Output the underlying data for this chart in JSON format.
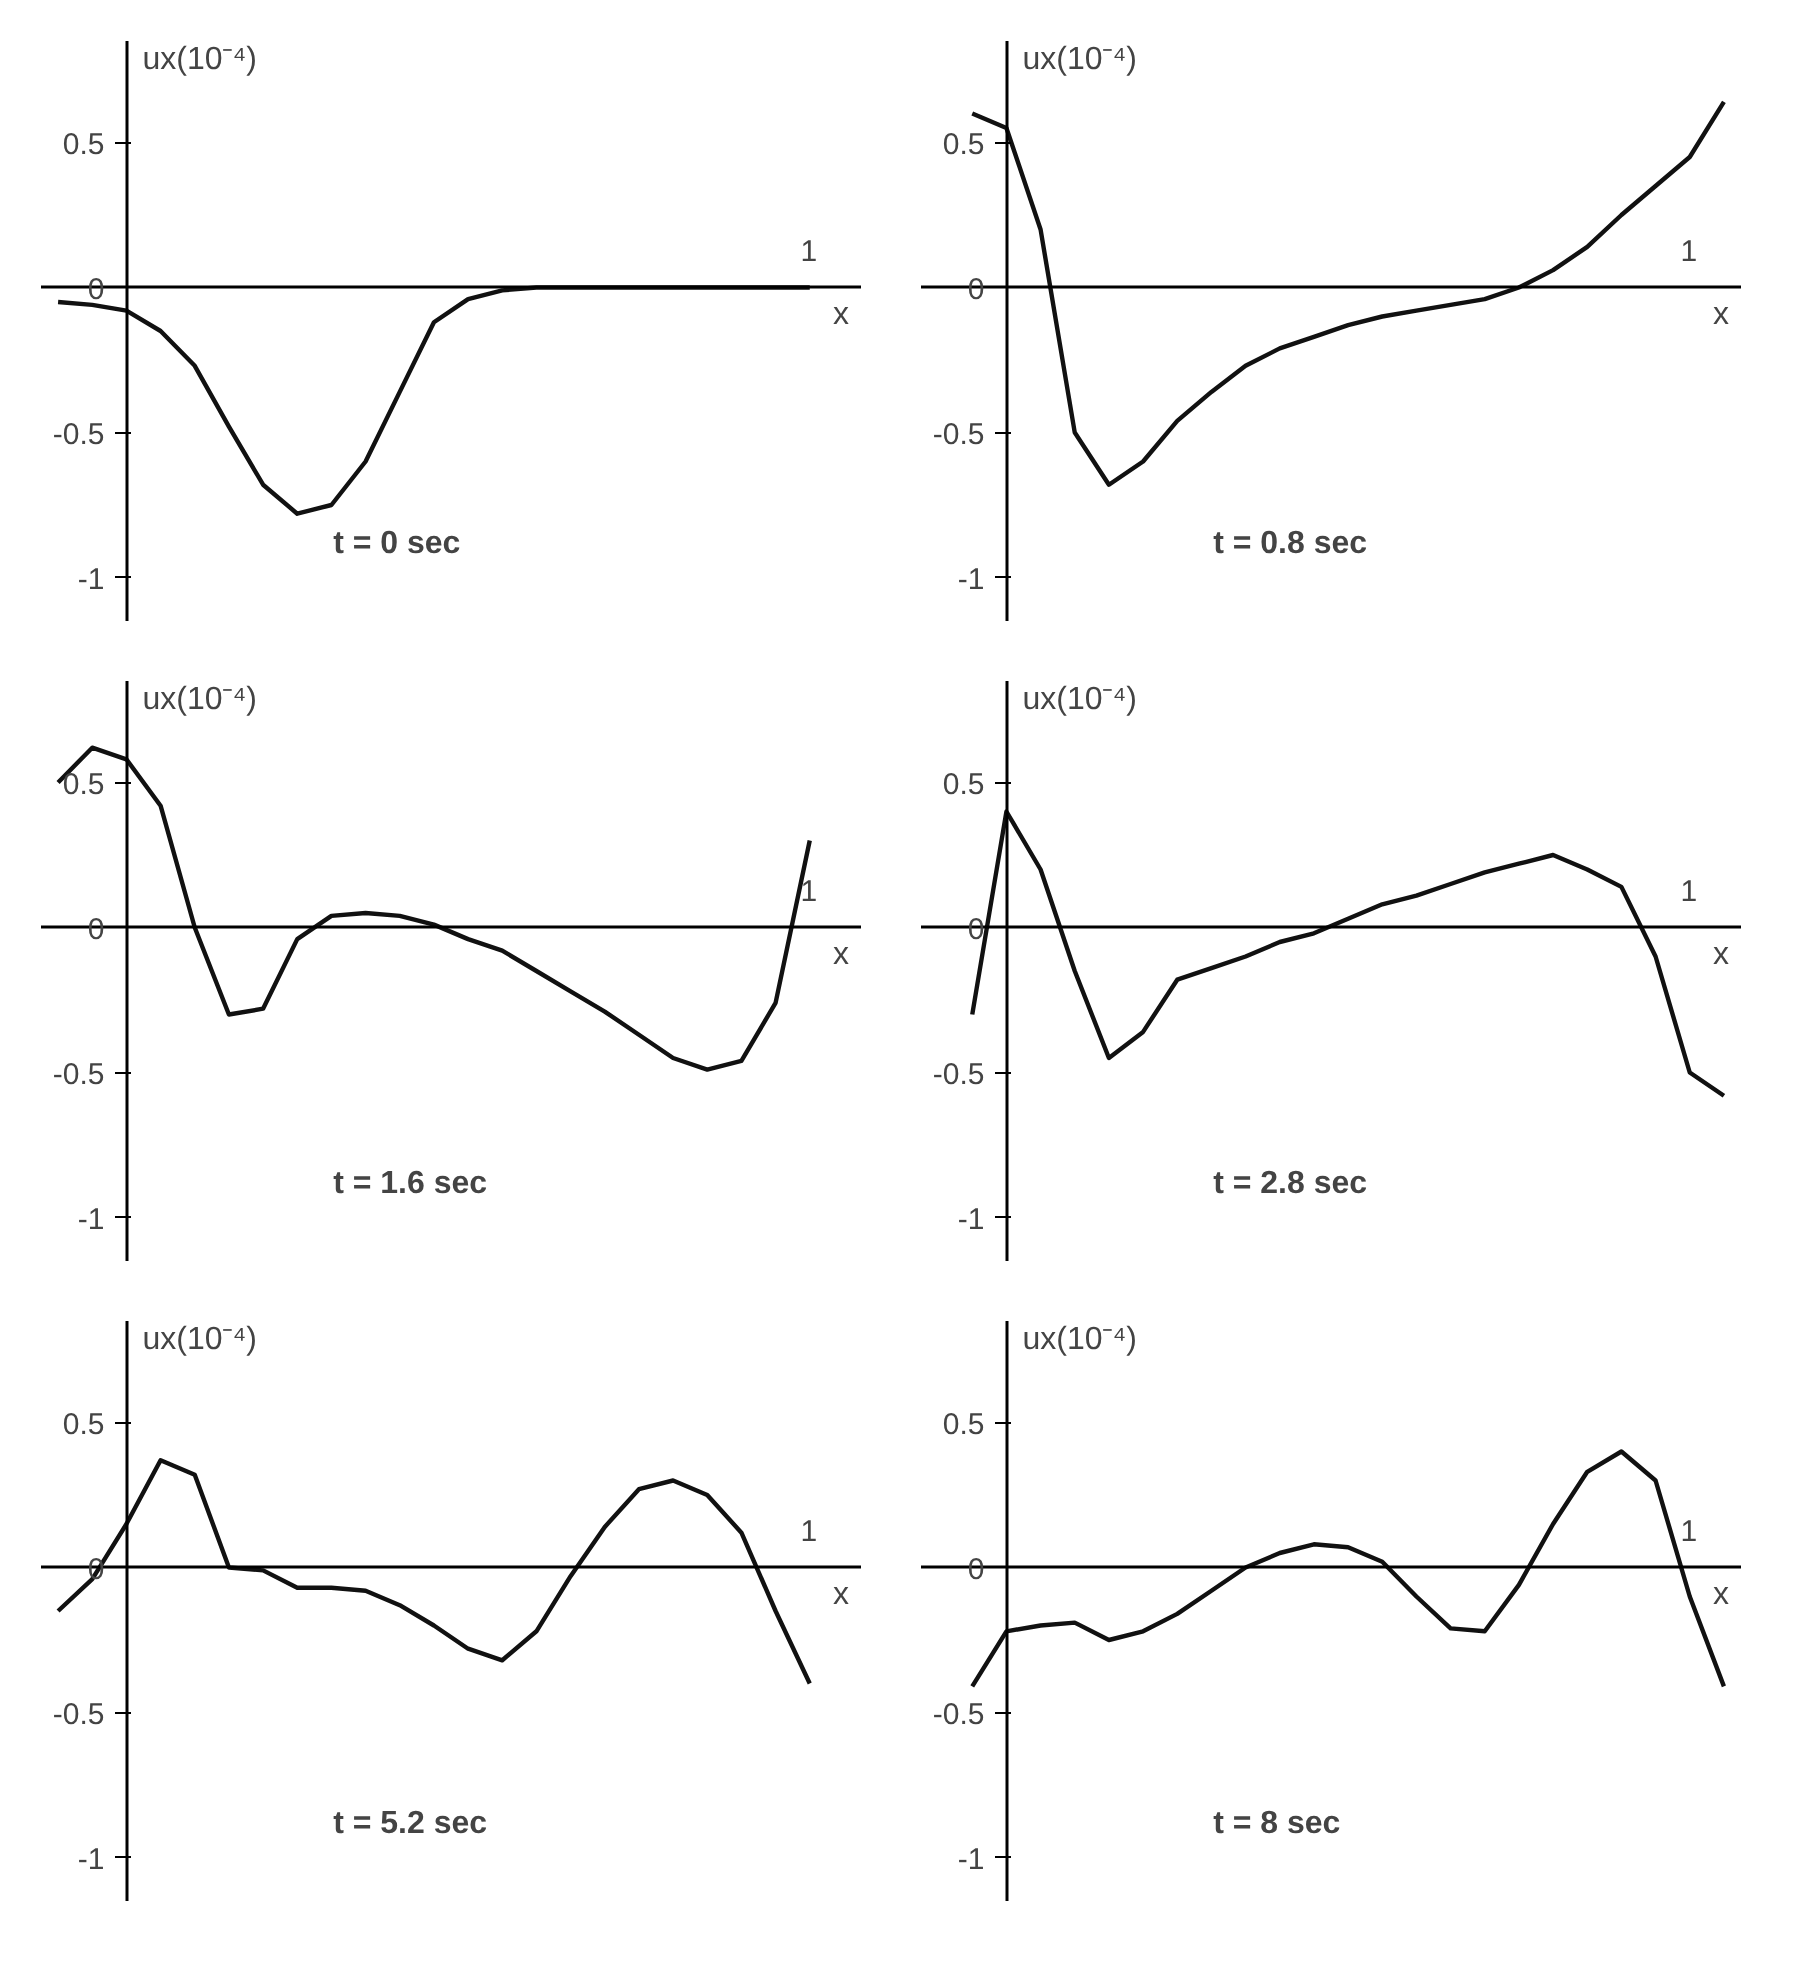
{
  "chart_data": [
    {
      "type": "line",
      "ylabel": "ux(10⁻⁴)",
      "xlabel": "x",
      "annotations": [
        "t = 0 sec",
        "1"
      ],
      "categories": [
        null,
        null,
        null,
        null,
        null,
        null,
        null,
        null,
        null,
        null,
        null,
        null,
        null,
        null,
        null,
        null,
        null,
        null,
        null,
        null,
        null,
        null,
        null,
        null
      ],
      "ylim": [
        -1.15,
        0.85
      ],
      "yticks": [
        0.5,
        0,
        -0.5,
        -1
      ],
      "tick_labels": "y",
      "marker": "none",
      "line_style": "solid",
      "series": [
        {
          "color": "#111111",
          "values": [
            -0.05,
            -0.06,
            -0.08,
            -0.15,
            -0.27,
            -0.48,
            -0.68,
            -0.78,
            -0.75,
            -0.6,
            -0.36,
            -0.12,
            -0.04,
            -0.01,
            0,
            0,
            0,
            0,
            0,
            0,
            0,
            0,
            0,
            null
          ]
        }
      ]
    },
    {
      "type": "line",
      "ylabel": "ux(10⁻⁴)",
      "xlabel": "x",
      "annotations": [
        "t = 0.8 sec",
        "1"
      ],
      "categories": [
        null,
        null,
        null,
        null,
        null,
        null,
        null,
        null,
        null,
        null,
        null,
        null,
        null,
        null,
        null,
        null,
        null,
        null,
        null,
        null,
        null,
        null,
        null,
        null
      ],
      "ylim": [
        -1.15,
        0.85
      ],
      "yticks": [
        0.5,
        0,
        -0.5,
        -1
      ],
      "tick_labels": "y",
      "marker": "none",
      "line_style": "solid",
      "series": [
        {
          "color": "#111111",
          "values": [
            null,
            0.6,
            0.55,
            0.2,
            -0.5,
            -0.68,
            -0.6,
            -0.46,
            -0.36,
            -0.27,
            -0.21,
            -0.17,
            -0.13,
            -0.1,
            -0.08,
            -0.06,
            -0.04,
            0,
            0.06,
            0.14,
            0.25,
            0.35,
            0.45,
            0.64
          ]
        }
      ]
    },
    {
      "type": "line",
      "ylabel": "ux(10⁻⁴)",
      "xlabel": "x",
      "annotations": [
        "t = 1.6 sec",
        "1"
      ],
      "categories": [
        null,
        null,
        null,
        null,
        null,
        null,
        null,
        null,
        null,
        null,
        null,
        null,
        null,
        null,
        null,
        null,
        null,
        null,
        null,
        null,
        null,
        null,
        null,
        null
      ],
      "ylim": [
        -1.15,
        0.85
      ],
      "yticks": [
        0.5,
        0,
        -0.5,
        -1
      ],
      "tick_labels": "y",
      "marker": "none",
      "line_style": "solid",
      "series": [
        {
          "color": "#111111",
          "values": [
            0.5,
            0.62,
            0.58,
            0.42,
            0,
            -0.3,
            -0.28,
            -0.04,
            0.04,
            0.05,
            0.04,
            0.01,
            -0.04,
            -0.08,
            -0.15,
            -0.22,
            -0.29,
            -0.37,
            -0.45,
            -0.49,
            -0.46,
            -0.26,
            0.3,
            null
          ]
        }
      ]
    },
    {
      "type": "line",
      "ylabel": "ux(10⁻⁴)",
      "xlabel": "x",
      "annotations": [
        "t = 2.8 sec",
        "1"
      ],
      "categories": [
        null,
        null,
        null,
        null,
        null,
        null,
        null,
        null,
        null,
        null,
        null,
        null,
        null,
        null,
        null,
        null,
        null,
        null,
        null,
        null,
        null,
        null,
        null,
        null
      ],
      "ylim": [
        -1.15,
        0.85
      ],
      "yticks": [
        0.5,
        0,
        -0.5,
        -1
      ],
      "tick_labels": "y",
      "marker": "none",
      "line_style": "solid",
      "series": [
        {
          "color": "#111111",
          "values": [
            null,
            -0.3,
            0.4,
            0.2,
            -0.15,
            -0.45,
            -0.36,
            -0.18,
            -0.14,
            -0.1,
            -0.05,
            -0.02,
            0.03,
            0.08,
            0.11,
            0.15,
            0.19,
            0.22,
            0.25,
            0.2,
            0.14,
            -0.1,
            -0.5,
            -0.58
          ]
        }
      ]
    },
    {
      "type": "line",
      "ylabel": "ux(10⁻⁴)",
      "xlabel": "x",
      "annotations": [
        "t = 5.2 sec",
        "1"
      ],
      "categories": [
        null,
        null,
        null,
        null,
        null,
        null,
        null,
        null,
        null,
        null,
        null,
        null,
        null,
        null,
        null,
        null,
        null,
        null,
        null,
        null,
        null,
        null,
        null,
        null
      ],
      "ylim": [
        -1.15,
        0.85
      ],
      "yticks": [
        0.5,
        0,
        -0.5,
        -1
      ],
      "tick_labels": "y",
      "marker": "none",
      "line_style": "solid",
      "series": [
        {
          "color": "#111111",
          "values": [
            -0.15,
            -0.04,
            0.15,
            0.37,
            0.32,
            0,
            -0.01,
            -0.07,
            -0.07,
            -0.08,
            -0.13,
            -0.2,
            -0.28,
            -0.32,
            -0.22,
            -0.03,
            0.14,
            0.27,
            0.3,
            0.25,
            0.12,
            -0.15,
            -0.4,
            null
          ]
        }
      ]
    },
    {
      "type": "line",
      "ylabel": "ux(10⁻⁴)",
      "xlabel": "x",
      "annotations": [
        "t = 8 sec",
        "1"
      ],
      "categories": [
        null,
        null,
        null,
        null,
        null,
        null,
        null,
        null,
        null,
        null,
        null,
        null,
        null,
        null,
        null,
        null,
        null,
        null,
        null,
        null,
        null,
        null,
        null,
        null
      ],
      "ylim": [
        -1.15,
        0.85
      ],
      "yticks": [
        0.5,
        0,
        -0.5,
        -1
      ],
      "tick_labels": "y",
      "marker": "none",
      "line_style": "solid",
      "series": [
        {
          "color": "#111111",
          "values": [
            null,
            -0.41,
            -0.22,
            -0.2,
            -0.19,
            -0.25,
            -0.22,
            -0.16,
            -0.08,
            0,
            0.05,
            0.08,
            0.07,
            0.02,
            -0.1,
            -0.21,
            -0.22,
            -0.06,
            0.15,
            0.33,
            0.4,
            0.3,
            -0.1,
            -0.41
          ]
        }
      ]
    }
  ]
}
